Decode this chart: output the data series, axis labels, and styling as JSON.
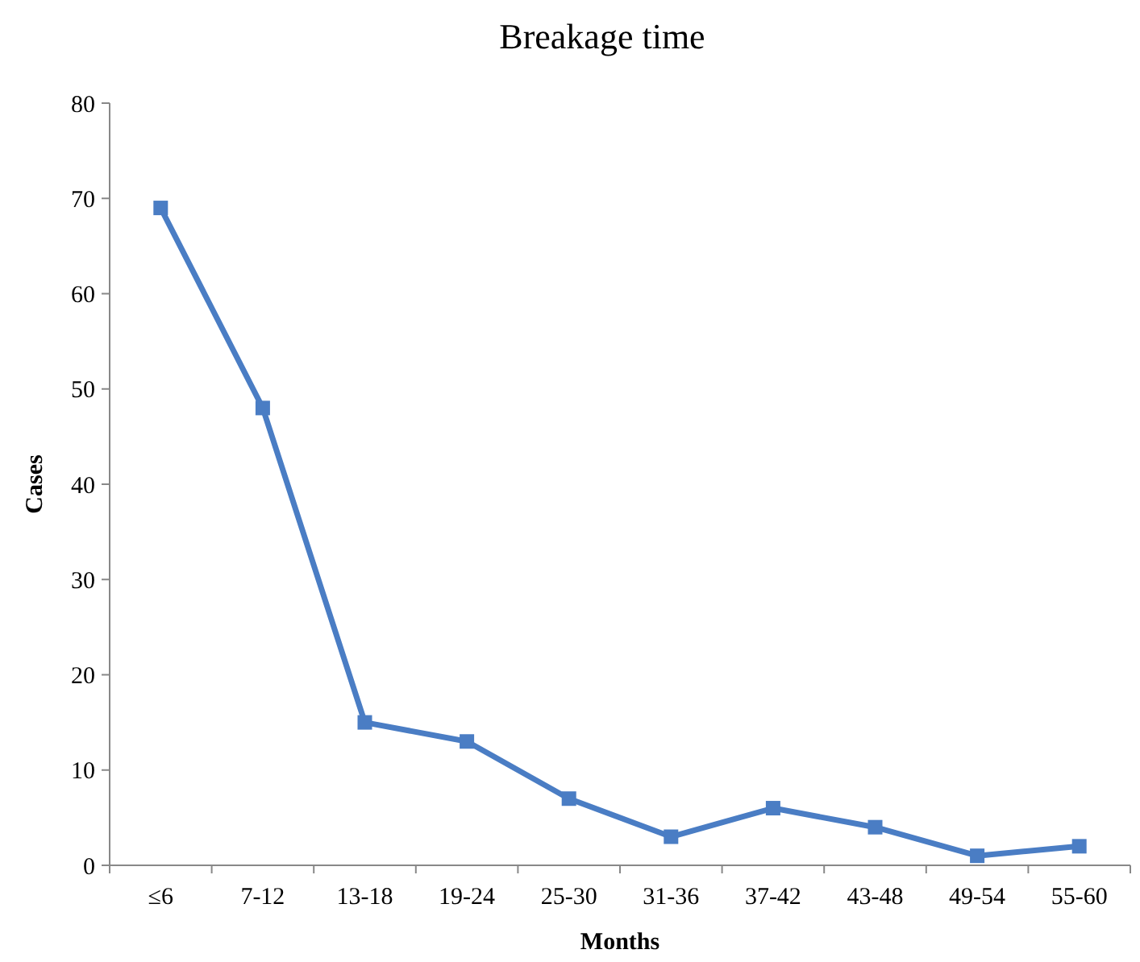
{
  "chart_data": {
    "type": "line",
    "title": "Breakage time",
    "xlabel": "Months",
    "ylabel": "Cases",
    "categories": [
      "≤6",
      "7-12",
      "13-18",
      "19-24",
      "25-30",
      "31-36",
      "37-42",
      "43-48",
      "49-54",
      "55-60"
    ],
    "series": [
      {
        "color": "#4a7dc4",
        "values": [
          69,
          48,
          15,
          13,
          7,
          3,
          6,
          4,
          1,
          2
        ]
      }
    ],
    "ylim": [
      0,
      80
    ],
    "yticks": [
      0,
      10,
      20,
      30,
      40,
      50,
      60,
      70,
      80
    ],
    "grid": false,
    "marker": "square",
    "line_style": "solid"
  }
}
